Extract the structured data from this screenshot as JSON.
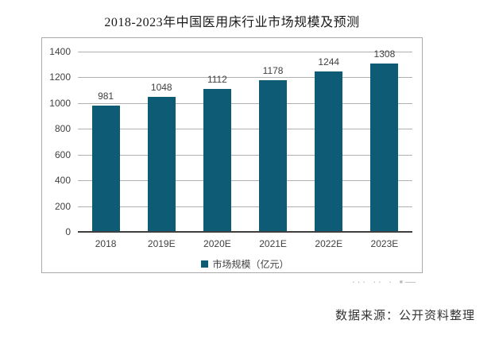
{
  "chart_data": {
    "type": "bar",
    "title": "2018-2023年中国医用床行业市场规模及预测",
    "categories": [
      "2018",
      "2019E",
      "2020E",
      "2021E",
      "2022E",
      "2023E"
    ],
    "series": [
      {
        "name": "市场规模（亿元）",
        "values": [
          981,
          1048,
          1112,
          1178,
          1244,
          1308
        ]
      }
    ],
    "xlabel": "",
    "ylabel": "",
    "ylim": [
      0,
      1400
    ],
    "ytick_step": 200,
    "grid": true,
    "legend_position": "bottom",
    "value_labels_shown": true,
    "colors": {
      "bar": "#0d5b75",
      "gridline": "#b0b0b0",
      "axis_line": "#3f3f3f",
      "tick_text": "#404040",
      "frame_border": "#a9a9a9"
    }
  },
  "watermark_fragment": "∙∙∙ ∙∙ ∙  ▪―",
  "source_note": "数据来源：公开资料整理"
}
